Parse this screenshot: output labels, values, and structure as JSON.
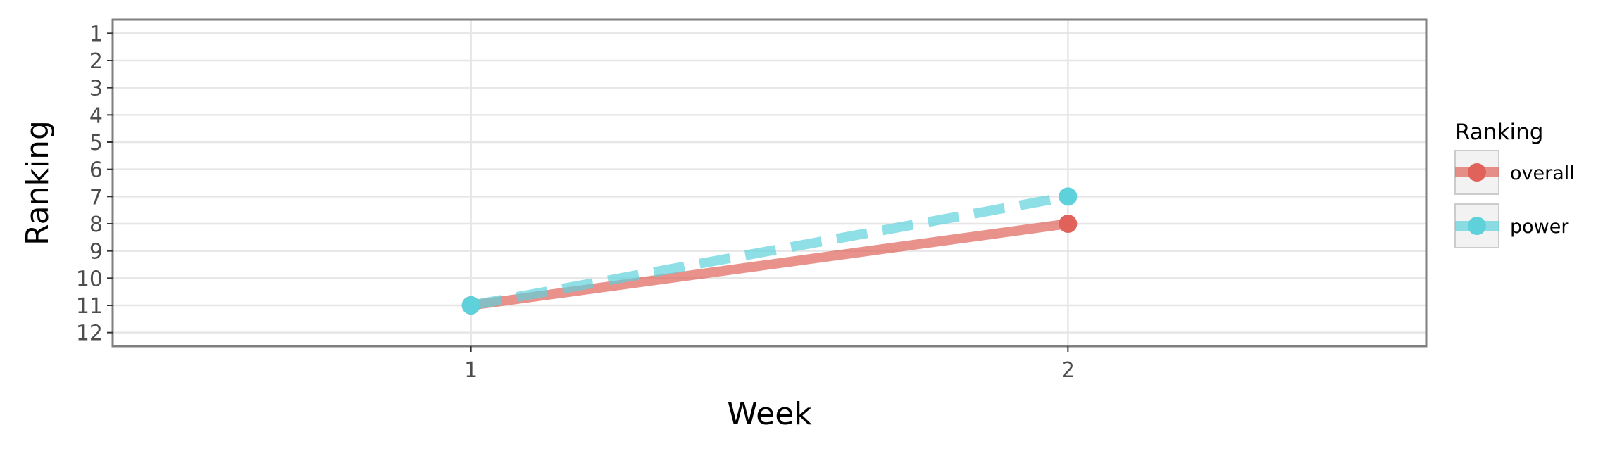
{
  "chart_data": {
    "type": "line",
    "xlabel": "Week",
    "ylabel": "Ranking",
    "x": [
      1,
      2
    ],
    "x_ticks": [
      "1",
      "2"
    ],
    "xlim": [
      0.4,
      2.6
    ],
    "y_ticks": [
      "1",
      "2",
      "3",
      "4",
      "5",
      "6",
      "7",
      "8",
      "9",
      "10",
      "11",
      "12"
    ],
    "ylim": [
      0.5,
      12.5
    ],
    "y_reversed": true,
    "grid": true,
    "legend": {
      "title": "Ranking",
      "position": "right"
    },
    "series": [
      {
        "name": "overall",
        "values": [
          11,
          8
        ],
        "color": "#e0625a",
        "dash": "solid"
      },
      {
        "name": "power",
        "values": [
          11,
          7
        ],
        "color": "#5ed1db",
        "dash": "dashed"
      }
    ]
  }
}
